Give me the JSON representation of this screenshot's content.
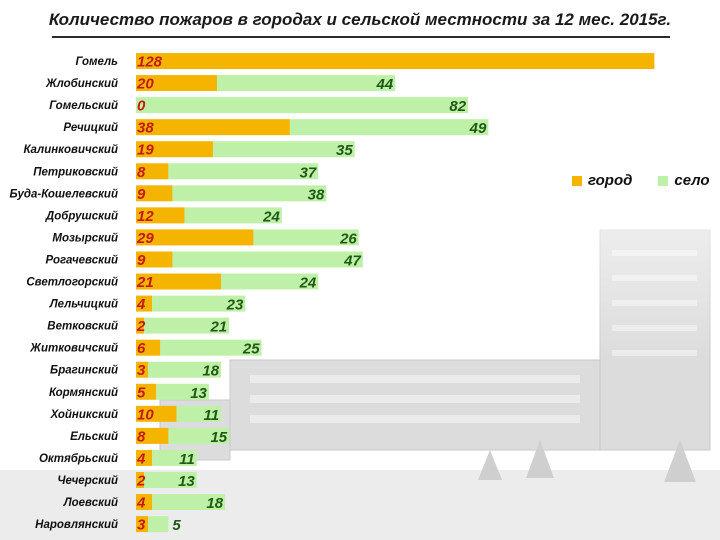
{
  "colors": {
    "city": "#f5b400",
    "rural": "#bff0a8",
    "city_text": "#c41a10",
    "rural_text": "#1f5a14"
  },
  "chart_data": {
    "type": "bar",
    "orientation": "horizontal",
    "stacked": true,
    "title": "Количество пожаров в городах и сельской местности за 12 мес. 2015г.",
    "legend_position": "right",
    "grid": false,
    "categories": [
      "Гомель",
      "Жлобинский",
      "Гомельский",
      "Речицкий",
      "Калинковичский",
      "Петриковский",
      "Буда-Кошелевский",
      "Добрушский",
      "Мозырский",
      "Рогачевский",
      "Светлогорский",
      "Лельчицкий",
      "Ветковский",
      "Житковичский",
      "Брагинский",
      "Кормянский",
      "Хойникский",
      "Ельский",
      "Октябрьский",
      "Чечерский",
      "Лоевский",
      "Наровлянский"
    ],
    "series": [
      {
        "name": "город",
        "values": [
          128,
          20,
          0,
          38,
          19,
          8,
          9,
          12,
          29,
          9,
          21,
          4,
          2,
          6,
          3,
          5,
          10,
          8,
          4,
          2,
          4,
          3
        ],
        "labels": [
          "128",
          "20",
          "0",
          "38",
          "19",
          "8",
          "9",
          "12",
          "29",
          "9",
          "21",
          "4",
          "2",
          "6",
          "3",
          "5",
          "10",
          "8",
          "4",
          "2",
          "4",
          "3"
        ]
      },
      {
        "name": "село",
        "values": [
          0,
          44,
          82,
          49,
          35,
          37,
          38,
          24,
          26,
          47,
          24,
          23,
          21,
          25,
          18,
          13,
          11,
          15,
          11,
          13,
          18,
          5
        ],
        "labels": [
          "",
          "44",
          "82",
          "49",
          "35",
          "37",
          "38",
          "24",
          "26",
          "47",
          "24",
          "23",
          "21",
          "25",
          "18",
          "13",
          "11",
          "15",
          "11",
          "13",
          "18",
          "5"
        ]
      }
    ]
  }
}
